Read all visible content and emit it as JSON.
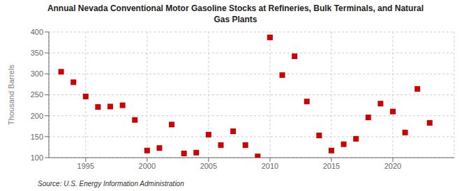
{
  "chart_data": {
    "type": "scatter",
    "title": "Annual Nevada Conventional Motor Gasoline Stocks at Refineries, Bulk Terminals, and Natural\nGas Plants",
    "ylabel": "Thousand Barrels",
    "annotations": [
      "Source: U.S. Energy Information Administration"
    ],
    "x": [
      1993,
      1994,
      1995,
      1996,
      1997,
      1998,
      1999,
      2000,
      2001,
      2002,
      2003,
      2004,
      2005,
      2006,
      2007,
      2008,
      2009,
      2010,
      2011,
      2012,
      2013,
      2014,
      2015,
      2016,
      2017,
      2018,
      2019,
      2020,
      2021,
      2022,
      2023
    ],
    "values": [
      305,
      280,
      246,
      221,
      222,
      225,
      190,
      117,
      123,
      179,
      110,
      112,
      155,
      130,
      163,
      130,
      103,
      387,
      297,
      342,
      234,
      153,
      117,
      132,
      145,
      196,
      229,
      210,
      160,
      264,
      183
    ],
    "color": "#cc0000",
    "marker": "square",
    "xlim": [
      1992,
      2025
    ],
    "ylim": [
      100,
      400
    ],
    "xticks": [
      1995,
      2000,
      2005,
      2010,
      2015,
      2020
    ],
    "yticks": [
      100,
      150,
      200,
      250,
      300,
      350,
      400
    ],
    "grid": true
  }
}
